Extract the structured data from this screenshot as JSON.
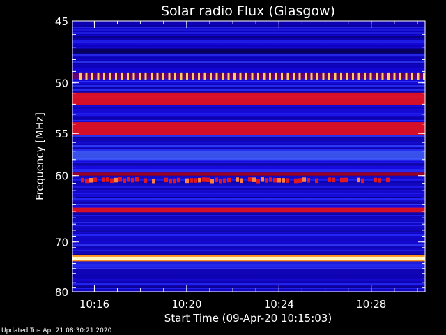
{
  "footer": {
    "updated": "Updated Tue Apr 21 08:30:21 2020"
  },
  "chart_data": {
    "type": "heatmap",
    "title": "Solar radio Flux (Glasgow)",
    "xlabel": "Start Time (09-Apr-20 10:15:03)",
    "ylabel": "Frequency [MHz]",
    "x_start": "10:15:03",
    "x_end": "10:30:20",
    "x_ticks": [
      "10:16",
      "10:20",
      "10:24",
      "10:28"
    ],
    "y_range_mhz": [
      45,
      80
    ],
    "y_ticks": [
      45,
      50,
      55,
      60,
      70,
      80
    ],
    "y_scale": "reciprocal",
    "bands": [
      {
        "mhz": 47.3,
        "level": "dark",
        "width_mhz": 0.4
      },
      {
        "mhz": 49.4,
        "level": "dotted-pulse",
        "width_mhz": 0.5
      },
      {
        "mhz": 51.5,
        "level": "red",
        "width_mhz": 1.2
      },
      {
        "mhz": 54.5,
        "level": "red",
        "width_mhz": 1.4
      },
      {
        "mhz": 57.5,
        "level": "blue-light",
        "width_mhz": 1.0
      },
      {
        "mhz": 59.8,
        "level": "dark-red",
        "width_mhz": 0.4
      },
      {
        "mhz": 60.6,
        "level": "red-patchy",
        "width_mhz": 0.6
      },
      {
        "mhz": 64.8,
        "level": "red",
        "width_mhz": 0.7
      },
      {
        "mhz": 73.0,
        "level": "yellow",
        "width_mhz": 0.6
      }
    ],
    "colormap": [
      "#000000",
      "#08006a",
      "#1b10e8",
      "#4a60ff",
      "#c80020",
      "#ff2020",
      "#ffcc30",
      "#fffff0"
    ]
  }
}
